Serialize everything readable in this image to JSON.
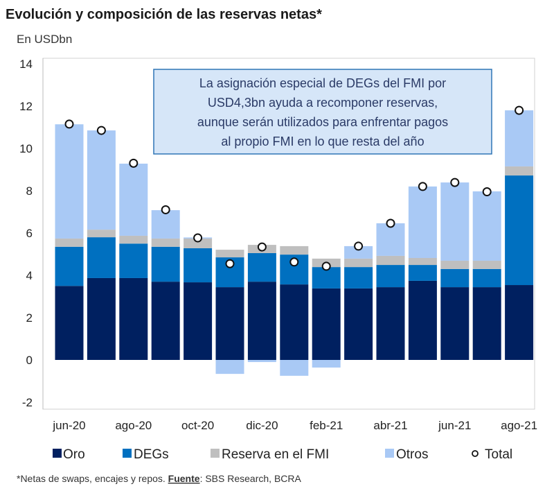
{
  "chart_data": {
    "type": "bar",
    "stacked": true,
    "title": "Evolución y composición de las reservas netas*",
    "subtitle": "En USDbn",
    "xlabel": "",
    "ylabel": "",
    "ylim": [
      -2,
      14
    ],
    "yticks": [
      "14",
      "12",
      "10",
      "8",
      "6",
      "4",
      "2",
      "0",
      "-2"
    ],
    "grid": false,
    "legend_position": "bottom",
    "categories": [
      "jun-20",
      "jul-20",
      "ago-20",
      "sep-20",
      "oct-20",
      "nov-20",
      "dic-20",
      "ene-21",
      "feb-21",
      "mar-21",
      "abr-21",
      "may-21",
      "jun-21",
      "jul-21",
      "ago-21"
    ],
    "xtick_labels": [
      "jun-20",
      "ago-20",
      "oct-20",
      "dic-20",
      "feb-21",
      "abr-21",
      "jun-21",
      "ago-21"
    ],
    "series": [
      {
        "name": "Oro",
        "color": "#002060",
        "values": [
          3.5,
          3.87,
          3.87,
          3.7,
          3.67,
          3.44,
          3.7,
          3.57,
          3.38,
          3.38,
          3.44,
          3.74,
          3.44,
          3.44,
          3.54
        ]
      },
      {
        "name": "DEGs",
        "color": "#0070C0",
        "values": [
          1.85,
          1.93,
          1.63,
          1.65,
          1.61,
          1.41,
          1.35,
          1.41,
          1.01,
          1.01,
          1.05,
          0.75,
          0.86,
          0.86,
          5.18
        ]
      },
      {
        "name": "Reserva en el FMI",
        "color": "#BFBFBF",
        "values": [
          0.39,
          0.36,
          0.37,
          0.39,
          0.46,
          0.36,
          0.39,
          0.4,
          0.4,
          0.4,
          0.43,
          0.33,
          0.39,
          0.39,
          0.43
        ]
      },
      {
        "name": "Otros",
        "color": "#A9C9F5",
        "values": [
          5.4,
          4.69,
          3.41,
          1.34,
          0.05,
          -0.66,
          -0.1,
          -0.75,
          -0.36,
          0.59,
          1.54,
          3.38,
          3.7,
          3.28,
          2.65
        ]
      }
    ],
    "total": {
      "name": "Total",
      "values": [
        11.15,
        10.85,
        9.3,
        7.1,
        5.77,
        4.55,
        5.34,
        4.63,
        4.43,
        5.38,
        6.46,
        8.2,
        8.39,
        7.95,
        11.8
      ]
    },
    "annotation": [
      "La asignación especial de DEGs del FMI por",
      "USD4,3bn ayuda a recomponer reservas,",
      "aunque serán utilizados para enfrentar pagos",
      "al propio FMI en lo que resta del año"
    ]
  },
  "footnote": {
    "prefix": "*Netas de swaps, encajes y repos. ",
    "source_label": "Fuente",
    "source_text": ": SBS Research, BCRA"
  }
}
